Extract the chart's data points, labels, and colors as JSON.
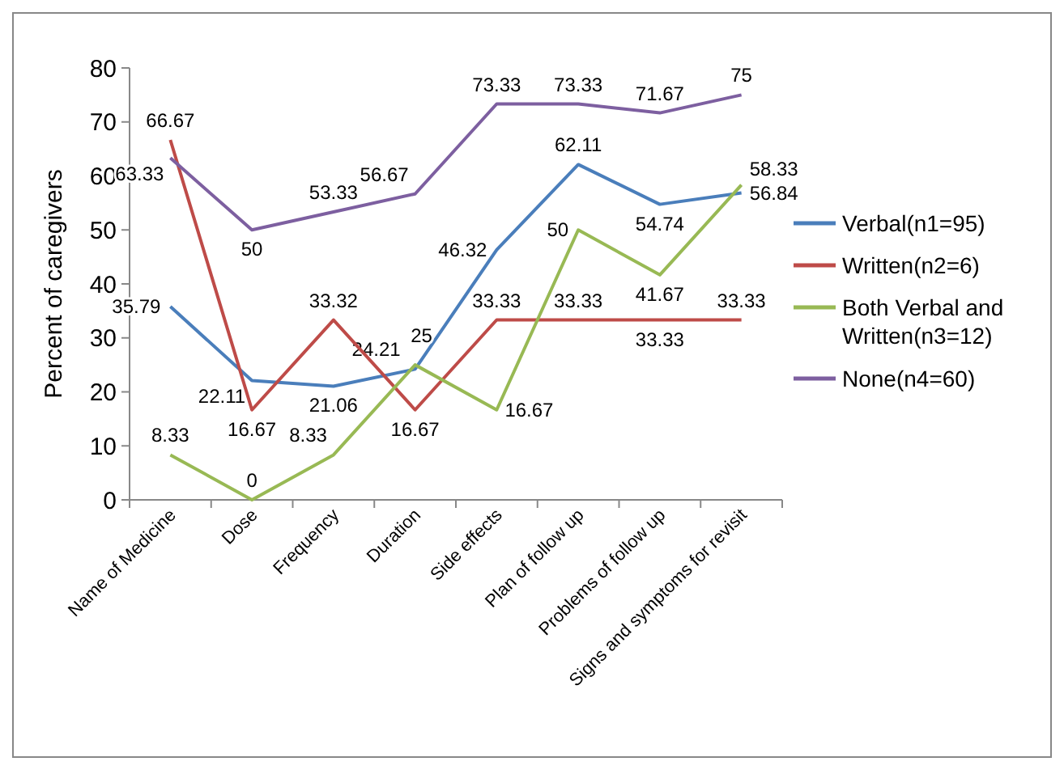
{
  "chart_data": {
    "type": "line",
    "ylabel": "Percent of caregivers",
    "categories": [
      "Name of Medicine",
      "Dose",
      "Frequency",
      "Duration",
      "Side effects",
      "Plan of follow up",
      "Problems of follow up",
      "Signs and symptoms for revisit"
    ],
    "series": [
      {
        "name": "Verbal(n1=95)",
        "color": "#4a7ebb",
        "values": [
          35.79,
          22.11,
          21.06,
          24.21,
          46.32,
          62.11,
          54.74,
          56.84
        ]
      },
      {
        "name": "Written(n2=6)",
        "color": "#be4b48",
        "values": [
          66.67,
          16.67,
          33.32,
          16.67,
          33.33,
          33.33,
          33.33,
          33.33
        ]
      },
      {
        "name": "Both Verbal and Written(n3=12)",
        "color": "#98b954",
        "values": [
          8.33,
          0,
          8.33,
          25,
          16.67,
          50,
          41.67,
          58.33
        ]
      },
      {
        "name": "None(n4=60)",
        "color": "#7d5fa0",
        "values": [
          63.33,
          50,
          53.33,
          56.67,
          73.33,
          73.33,
          71.67,
          75
        ]
      }
    ],
    "ylim": [
      0,
      80
    ],
    "yticks": [
      0,
      10,
      20,
      30,
      40,
      50,
      60,
      70,
      80
    ],
    "grid": false,
    "legend": "right",
    "marker": "none",
    "line_style": "solid",
    "data_labels": true
  }
}
